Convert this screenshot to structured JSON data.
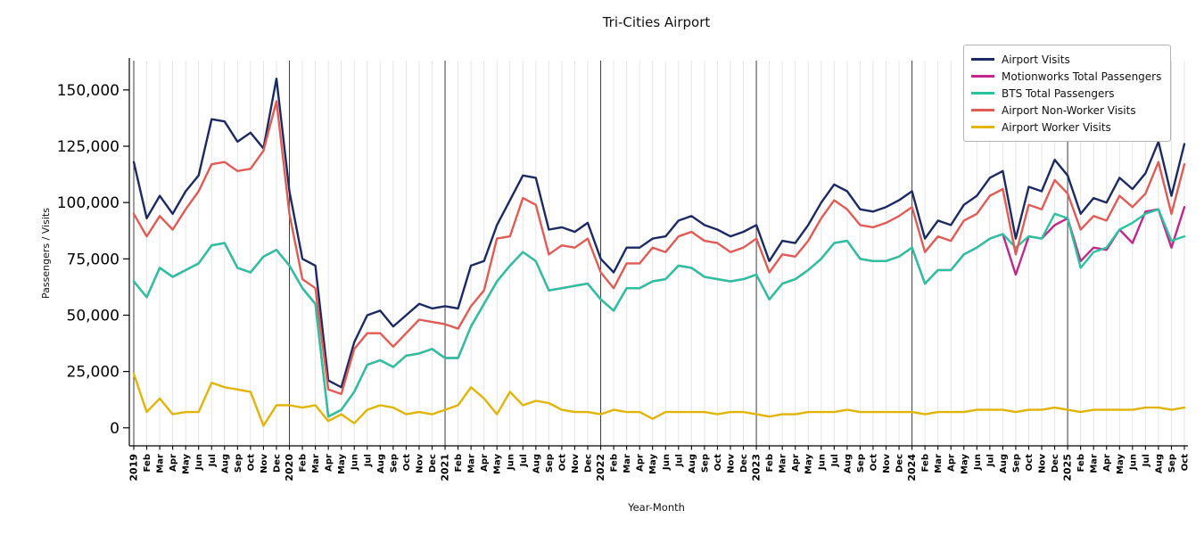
{
  "title": "Tri-Cities Airport",
  "chart_data": {
    "type": "line",
    "title": "Tri-Cities Airport",
    "xlabel": "Year-Month",
    "ylabel": "Passengers / Visits",
    "legend_position": "upper right",
    "grid": "vertical monthly gridlines, dark vertical lines at each January/year start, no horizontal gridlines",
    "ylim": [
      -8000,
      163000
    ],
    "y_ticks": {
      "values": [
        0,
        25000,
        50000,
        75000,
        100000,
        125000,
        150000
      ],
      "labels": [
        "0",
        "25,000",
        "50,000",
        "75,000",
        "100,000",
        "125,000",
        "150,000"
      ]
    },
    "x_tick_labels": [
      "2019",
      "Feb",
      "Mar",
      "Apr",
      "May",
      "Jun",
      "Jul",
      "Aug",
      "Sep",
      "Oct",
      "Nov",
      "Dec",
      "2020",
      "Feb",
      "Mar",
      "Apr",
      "May",
      "Jun",
      "Jul",
      "Aug",
      "Sep",
      "Oct",
      "Nov",
      "Dec",
      "2021",
      "Feb",
      "Mar",
      "Apr",
      "May",
      "Jun",
      "Jul",
      "Aug",
      "Sep",
      "Oct",
      "Nov",
      "Dec",
      "2022",
      "Feb",
      "Mar",
      "Apr",
      "May",
      "Jun",
      "Jul",
      "Aug",
      "Sep",
      "Oct",
      "Nov",
      "Dec",
      "2023",
      "Feb",
      "Mar",
      "Apr",
      "May",
      "Jun",
      "Jul",
      "Aug",
      "Sep",
      "Oct",
      "Nov",
      "Dec",
      "2024",
      "Feb",
      "Mar",
      "Apr",
      "May",
      "Jun",
      "Jul",
      "Aug",
      "Sep",
      "Oct",
      "Nov",
      "Dec",
      "2025",
      "Feb",
      "Mar",
      "Apr",
      "May",
      "Jun",
      "Jul",
      "Aug",
      "Sep",
      "Oct"
    ],
    "series": [
      {
        "name": "Airport Visits",
        "color": "#1b2a63",
        "values": [
          118000,
          93000,
          103000,
          95000,
          105000,
          112000,
          137000,
          136000,
          127000,
          131000,
          124000,
          155000,
          105000,
          75000,
          72000,
          21000,
          18000,
          38000,
          50000,
          52000,
          45000,
          50000,
          55000,
          53000,
          54000,
          53000,
          72000,
          74000,
          90000,
          101000,
          112000,
          111000,
          88000,
          89000,
          87000,
          91000,
          75000,
          69000,
          80000,
          80000,
          84000,
          85000,
          92000,
          94000,
          90000,
          88000,
          85000,
          87000,
          90000,
          74000,
          83000,
          82000,
          90000,
          100000,
          108000,
          105000,
          97000,
          96000,
          98000,
          101000,
          105000,
          84000,
          92000,
          90000,
          99000,
          103000,
          111000,
          114000,
          84000,
          107000,
          105000,
          119000,
          112000,
          95000,
          102000,
          100000,
          111000,
          106000,
          113000,
          127000,
          103000,
          126000
        ]
      },
      {
        "name": "Motionworks Total Passengers",
        "color": "#c2268d",
        "values": [
          65000,
          58000,
          71000,
          67000,
          70000,
          73000,
          81000,
          82000,
          71000,
          69000,
          76000,
          79000,
          72000,
          62000,
          55000,
          5000,
          8000,
          16000,
          28000,
          30000,
          27000,
          32000,
          33000,
          35000,
          31000,
          31000,
          45000,
          55000,
          65000,
          72000,
          78000,
          74000,
          61000,
          62000,
          63000,
          64000,
          57000,
          52000,
          62000,
          62000,
          65000,
          66000,
          72000,
          71000,
          67000,
          66000,
          65000,
          66000,
          68000,
          57000,
          64000,
          66000,
          70000,
          75000,
          82000,
          83000,
          75000,
          74000,
          74000,
          76000,
          80000,
          64000,
          70000,
          70000,
          77000,
          80000,
          84000,
          86000,
          68000,
          85000,
          84000,
          90000,
          93000,
          74000,
          80000,
          79000,
          88000,
          82000,
          96000,
          97000,
          80000,
          98000
        ]
      },
      {
        "name": "BTS Total Passengers",
        "color": "#28c3a0",
        "values": [
          65000,
          58000,
          71000,
          67000,
          70000,
          73000,
          81000,
          82000,
          71000,
          69000,
          76000,
          79000,
          72000,
          62000,
          55000,
          5000,
          8000,
          16000,
          28000,
          30000,
          27000,
          32000,
          33000,
          35000,
          31000,
          31000,
          45000,
          55000,
          65000,
          72000,
          78000,
          74000,
          61000,
          62000,
          63000,
          64000,
          57000,
          52000,
          62000,
          62000,
          65000,
          66000,
          72000,
          71000,
          67000,
          66000,
          65000,
          66000,
          68000,
          57000,
          64000,
          66000,
          70000,
          75000,
          82000,
          83000,
          75000,
          74000,
          74000,
          76000,
          80000,
          64000,
          70000,
          70000,
          77000,
          80000,
          84000,
          86000,
          80000,
          85000,
          84000,
          95000,
          93000,
          71000,
          78000,
          80000,
          88000,
          91000,
          95000,
          97000,
          83000,
          85000
        ]
      },
      {
        "name": "Airport Non-Worker Visits",
        "color": "#e15b54",
        "values": [
          95000,
          85000,
          94000,
          88000,
          97000,
          105000,
          117000,
          118000,
          114000,
          115000,
          123000,
          145000,
          95000,
          66000,
          62000,
          17000,
          15000,
          35000,
          42000,
          42000,
          36000,
          42000,
          48000,
          47000,
          46000,
          44000,
          54000,
          61000,
          84000,
          85000,
          102000,
          99000,
          77000,
          81000,
          80000,
          84000,
          69000,
          62000,
          73000,
          73000,
          80000,
          78000,
          85000,
          87000,
          83000,
          82000,
          78000,
          80000,
          84000,
          69000,
          77000,
          76000,
          83000,
          93000,
          101000,
          97000,
          90000,
          89000,
          91000,
          94000,
          98000,
          78000,
          85000,
          83000,
          92000,
          95000,
          103000,
          106000,
          77000,
          99000,
          97000,
          110000,
          104000,
          88000,
          94000,
          92000,
          103000,
          98000,
          104000,
          118000,
          95000,
          117000
        ]
      },
      {
        "name": "Airport Worker Visits",
        "color": "#e2b406",
        "values": [
          24000,
          7000,
          13000,
          6000,
          7000,
          7000,
          20000,
          18000,
          17000,
          16000,
          1000,
          10000,
          10000,
          9000,
          10000,
          3000,
          6000,
          2000,
          8000,
          10000,
          9000,
          6000,
          7000,
          6000,
          8000,
          10000,
          18000,
          13000,
          6000,
          16000,
          10000,
          12000,
          11000,
          8000,
          7000,
          7000,
          6000,
          8000,
          7000,
          7000,
          4000,
          7000,
          7000,
          7000,
          7000,
          6000,
          7000,
          7000,
          6000,
          5000,
          6000,
          6000,
          7000,
          7000,
          7000,
          8000,
          7000,
          7000,
          7000,
          7000,
          7000,
          6000,
          7000,
          7000,
          7000,
          8000,
          8000,
          8000,
          7000,
          8000,
          8000,
          9000,
          8000,
          7000,
          8000,
          8000,
          8000,
          8000,
          9000,
          9000,
          8000,
          9000
        ]
      }
    ]
  }
}
